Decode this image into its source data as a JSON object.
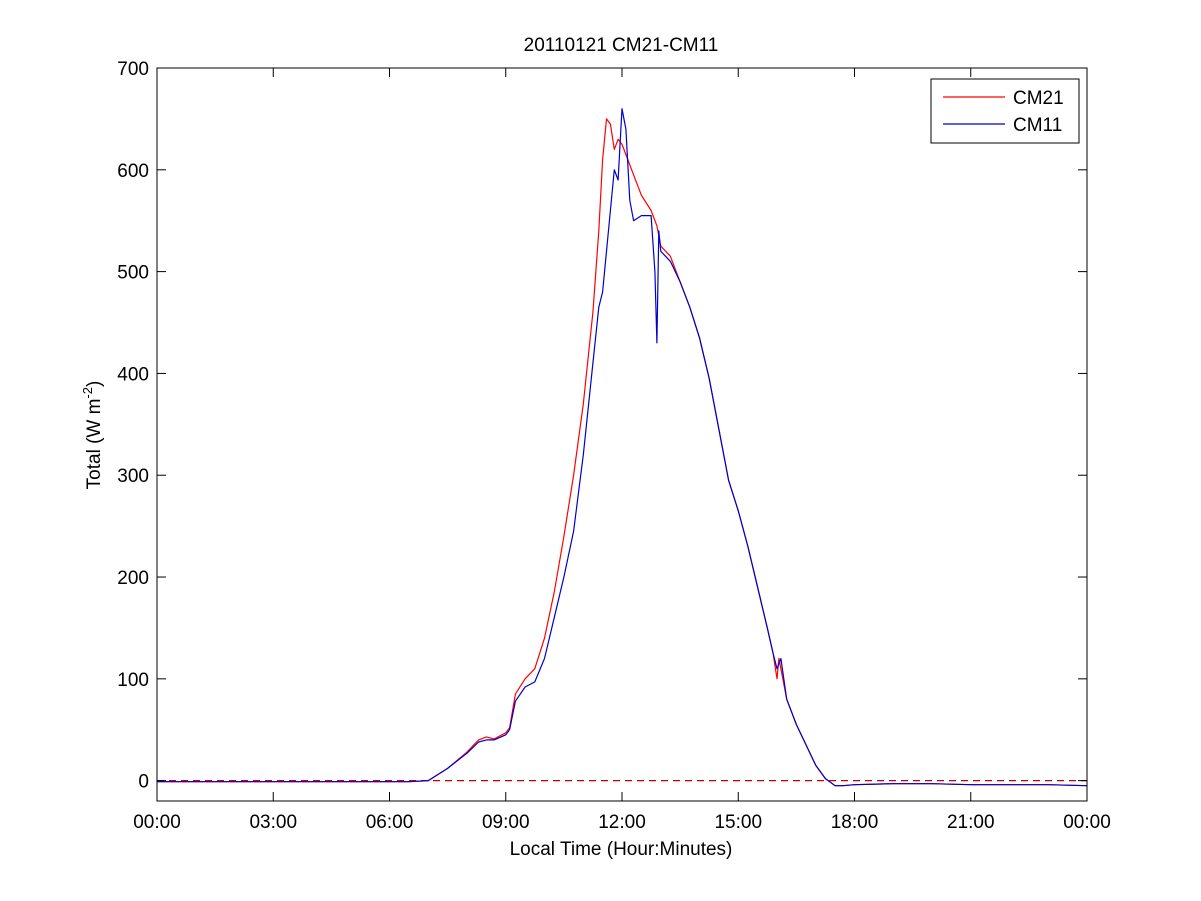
{
  "chart_data": {
    "type": "line",
    "title": "20110121 CM21-CM11",
    "xlabel": "Local Time (Hour:Minutes)",
    "ylabel": "Total (W m",
    "ylabel_superscript": "-2",
    "ylabel_suffix": ")",
    "xlim": [
      0,
      24
    ],
    "ylim": [
      -20,
      700
    ],
    "x_unit": "hours (local time)",
    "x_ticks": [
      0,
      3,
      6,
      9,
      12,
      15,
      18,
      21,
      24
    ],
    "x_tick_labels": [
      "00:00",
      "03:00",
      "06:00",
      "09:00",
      "12:00",
      "15:00",
      "18:00",
      "21:00",
      "00:00"
    ],
    "y_ticks": [
      0,
      100,
      200,
      300,
      400,
      500,
      600,
      700
    ],
    "y_tick_labels": [
      "0",
      "100",
      "200",
      "300",
      "400",
      "500",
      "600",
      "700"
    ],
    "legend_position": "top-right",
    "reference_line": {
      "y": 0,
      "style": "dashed",
      "color": "#cc0000"
    },
    "series": [
      {
        "name": "CM21",
        "color": "#ff0000",
        "x": [
          0,
          1,
          2,
          3,
          4,
          5,
          6,
          6.5,
          7,
          7.5,
          8,
          8.3,
          8.5,
          8.7,
          9,
          9.1,
          9.25,
          9.5,
          9.75,
          10,
          10.25,
          10.5,
          10.75,
          11,
          11.25,
          11.4,
          11.5,
          11.6,
          11.7,
          11.8,
          11.9,
          12.0,
          12.1,
          12.3,
          12.5,
          12.75,
          12.9,
          13.0,
          13.25,
          13.5,
          13.75,
          14.0,
          14.25,
          14.5,
          14.75,
          15.0,
          15.25,
          15.5,
          15.75,
          15.9,
          16.0,
          16.05,
          16.1,
          16.25,
          16.5,
          16.75,
          17.0,
          17.25,
          17.5,
          17.7,
          18.0,
          19.0,
          20.0,
          21.0,
          22.0,
          23.0,
          24.0
        ],
        "y": [
          -1,
          -1,
          -1,
          -1,
          -1,
          -1,
          -1,
          -1,
          0,
          12,
          28,
          40,
          43,
          41,
          47,
          52,
          85,
          100,
          110,
          140,
          185,
          240,
          300,
          370,
          460,
          540,
          610,
          650,
          645,
          620,
          630,
          625,
          615,
          595,
          575,
          560,
          545,
          525,
          515,
          490,
          465,
          435,
          395,
          345,
          295,
          265,
          230,
          190,
          150,
          125,
          100,
          120,
          110,
          80,
          55,
          35,
          15,
          2,
          -5,
          -5,
          -4,
          -3,
          -3,
          -4,
          -4,
          -4,
          -5
        ]
      },
      {
        "name": "CM11",
        "color": "#0000cc",
        "x": [
          0,
          1,
          2,
          3,
          4,
          5,
          6,
          6.5,
          7,
          7.5,
          8,
          8.3,
          8.5,
          8.7,
          9,
          9.1,
          9.25,
          9.5,
          9.75,
          10,
          10.25,
          10.5,
          10.75,
          11,
          11.25,
          11.4,
          11.5,
          11.7,
          11.8,
          11.9,
          12.0,
          12.1,
          12.2,
          12.3,
          12.5,
          12.75,
          12.85,
          12.9,
          12.95,
          13.0,
          13.25,
          13.5,
          13.75,
          14.0,
          14.25,
          14.5,
          14.75,
          15.0,
          15.25,
          15.5,
          15.75,
          15.9,
          16.0,
          16.1,
          16.25,
          16.5,
          16.75,
          17.0,
          17.25,
          17.5,
          17.7,
          18.0,
          19.0,
          20.0,
          21.0,
          22.0,
          23.0,
          24.0
        ],
        "y": [
          -1,
          -1,
          -1,
          -1,
          -1,
          -1,
          -1,
          -1,
          0,
          12,
          27,
          38,
          40,
          40,
          45,
          50,
          78,
          92,
          97,
          120,
          160,
          200,
          245,
          320,
          410,
          465,
          480,
          560,
          600,
          590,
          660,
          640,
          570,
          550,
          555,
          555,
          500,
          430,
          540,
          520,
          510,
          490,
          465,
          435,
          395,
          345,
          295,
          265,
          230,
          190,
          150,
          125,
          110,
          120,
          80,
          55,
          35,
          15,
          2,
          -5,
          -5,
          -4,
          -3,
          -3,
          -4,
          -4,
          -4,
          -5
        ]
      }
    ]
  }
}
